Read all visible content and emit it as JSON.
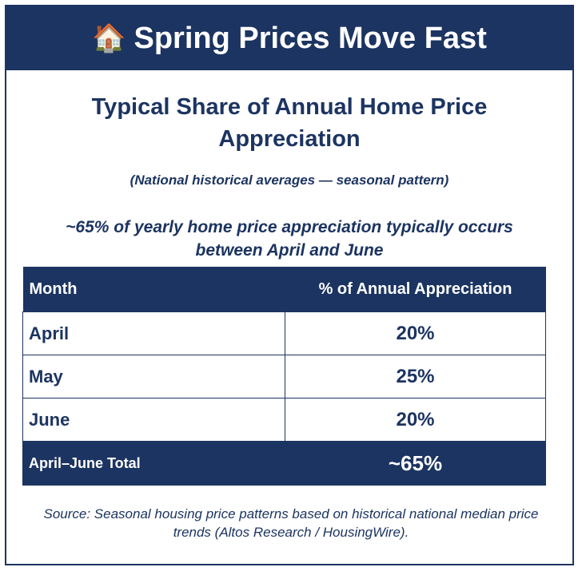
{
  "banner": {
    "icon": "house-icon",
    "title": "Spring Prices Move Fast"
  },
  "title": "Typical Share of Annual Home Price Appreciation",
  "subtitle": "(National historical averages — seasonal pattern)",
  "headline": "~65% of yearly home price appreciation typically occurs between April and June",
  "table": {
    "headers": [
      "Month",
      "% of Annual Appreciation"
    ],
    "rows": [
      {
        "month": "April",
        "pct": "20%"
      },
      {
        "month": "May",
        "pct": "25%"
      },
      {
        "month": "June",
        "pct": "20%"
      }
    ],
    "total": {
      "label": "April–June Total",
      "pct": "~65%"
    }
  },
  "source": "Source: Seasonal housing price patterns based on historical national median price trends (Altos Research / HousingWire).",
  "colors": {
    "navy": "#1c3461",
    "background": "#ffffff"
  }
}
